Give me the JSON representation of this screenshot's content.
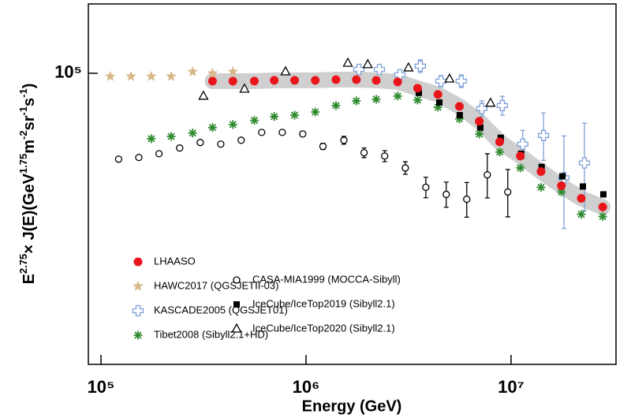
{
  "chart_data": {
    "type": "scatter",
    "xlabel": "Energy (GeV)",
    "ylabel_parts": [
      {
        "text": "E"
      },
      {
        "text": "2.75",
        "sup": true
      },
      {
        "text": "× J(E)(GeV"
      },
      {
        "text": "1.75",
        "sup": true
      },
      {
        "text": "m"
      },
      {
        "text": "-2",
        "sup": true
      },
      {
        "text": "sr"
      },
      {
        "text": "-1",
        "sup": true
      },
      {
        "text": "s"
      },
      {
        "text": "-1",
        "sup": true
      },
      {
        "text": ")"
      }
    ],
    "xlog": true,
    "ylog": true,
    "xlim": [
      86800,
      32500000
    ],
    "ylim": [
      30000,
      133200
    ],
    "xticks": [
      {
        "value": 100000,
        "label": "10⁵"
      },
      {
        "value": 1000000,
        "label": "10⁶"
      },
      {
        "value": 10000000,
        "label": "10⁷"
      }
    ],
    "yticks": [
      {
        "value": 100000,
        "label": "10⁵"
      }
    ],
    "legend": "lower-left",
    "series": [
      {
        "name": "LHAASO",
        "marker": "circle",
        "color": "#e8161b",
        "band_color": "#cfcfcf",
        "x": [
          350000,
          440000,
          560000,
          700000,
          880000,
          1110000,
          1400000,
          1760000,
          2200000,
          2800000,
          3500000,
          4400000,
          5600000,
          7000000,
          8800000,
          11100000,
          14000000,
          17600000,
          22000000,
          28000000
        ],
        "values": [
          96800,
          96800,
          96800,
          97100,
          97100,
          97100,
          97400,
          97400,
          97100,
          96500,
          94000,
          91600,
          87200,
          82000,
          75300,
          71000,
          66600,
          62800,
          59600,
          57500
        ]
      },
      {
        "name": "HAWC2017 (QGSJETII-03)",
        "marker": "star",
        "color": "#d8b98c",
        "x": [
          111000,
          140000,
          176000,
          220000,
          280000,
          350000,
          440000
        ],
        "values": [
          98700,
          98700,
          98700,
          98700,
          100650,
          100000,
          100650
        ]
      },
      {
        "name": "KASCADE2005 (QGSJET01)",
        "marker": "plus",
        "color": "#7f9fd8",
        "x": [
          1810000,
          2280000,
          2870000,
          3610000,
          4550000,
          5720000,
          7200000,
          9070000,
          11400000,
          14400000,
          18100000,
          22800000
        ],
        "values": [
          101600,
          101600,
          99400,
          103000,
          96800,
          96800,
          86400,
          87500,
          74600,
          77300,
          64900,
          69000
        ],
        "errors": [
          1320,
          1650,
          1940,
          2680,
          2210,
          2520,
          2810,
          3420,
          4370,
          7550,
          12260,
          12360
        ]
      },
      {
        "name": "Tibet2008 (Sibyll2.1+HD)",
        "marker": "asterisk",
        "color": "#2f8a2f",
        "x": [
          176000,
          220000,
          280000,
          350000,
          440000,
          560000,
          700000,
          880000,
          1110000,
          1400000,
          1760000,
          2200000,
          2800000,
          3500000,
          4400000,
          5600000,
          7000000,
          8800000,
          11100000,
          14000000,
          17600000,
          22000000,
          28000000
        ],
        "values": [
          76300,
          77000,
          78100,
          79900,
          80900,
          82300,
          83600,
          84100,
          85200,
          87500,
          89200,
          89800,
          91000,
          89500,
          86900,
          82800,
          77800,
          72200,
          67600,
          62400,
          61200,
          55800,
          55300
        ]
      },
      {
        "name": "CASA-MIA1999 (MOCCA-Sibyll)",
        "marker": "open-circle",
        "color": "#000000",
        "x": [
          122000,
          153000,
          192000,
          242000,
          305000,
          384000,
          483000,
          608000,
          766000,
          964000,
          1210000,
          1530000,
          1920000,
          2420000,
          3050000,
          3840000,
          4830000,
          6080000,
          7660000,
          9640000
        ],
        "values": [
          70100,
          70600,
          71700,
          73400,
          75100,
          74600,
          75800,
          78300,
          78300,
          77800,
          73900,
          75800,
          72000,
          71000,
          67600,
          62400,
          60600,
          59400,
          65700,
          61200
        ],
        "errors": [
          230,
          230,
          230,
          240,
          240,
          240,
          250,
          510,
          510,
          760,
          960,
          1230,
          1410,
          1620,
          1760,
          2640,
          3160,
          4260,
          5990,
          5980
        ]
      },
      {
        "name": "IceCube/IceTop2019 (Sibyll2.1)",
        "marker": "square",
        "color": "#000000",
        "x": [
          3550000,
          4470000,
          5620000,
          7080000,
          8910000,
          11200000,
          14100000,
          17800000,
          22400000,
          28200000
        ],
        "values": [
          92200,
          88600,
          84100,
          79900,
          76600,
          71700,
          67900,
          65300,
          62600,
          60600
        ]
      },
      {
        "name": "IceCube/IceTop2020 (Sibyll2.1)",
        "marker": "triangle",
        "color": "#000000",
        "x": [
          316000,
          501000,
          794000,
          1600000,
          2000000,
          3160000,
          5010000,
          7940000
        ],
        "values": [
          91000,
          93700,
          100650,
          104300,
          103700,
          102300,
          97700,
          88400
        ]
      }
    ]
  }
}
